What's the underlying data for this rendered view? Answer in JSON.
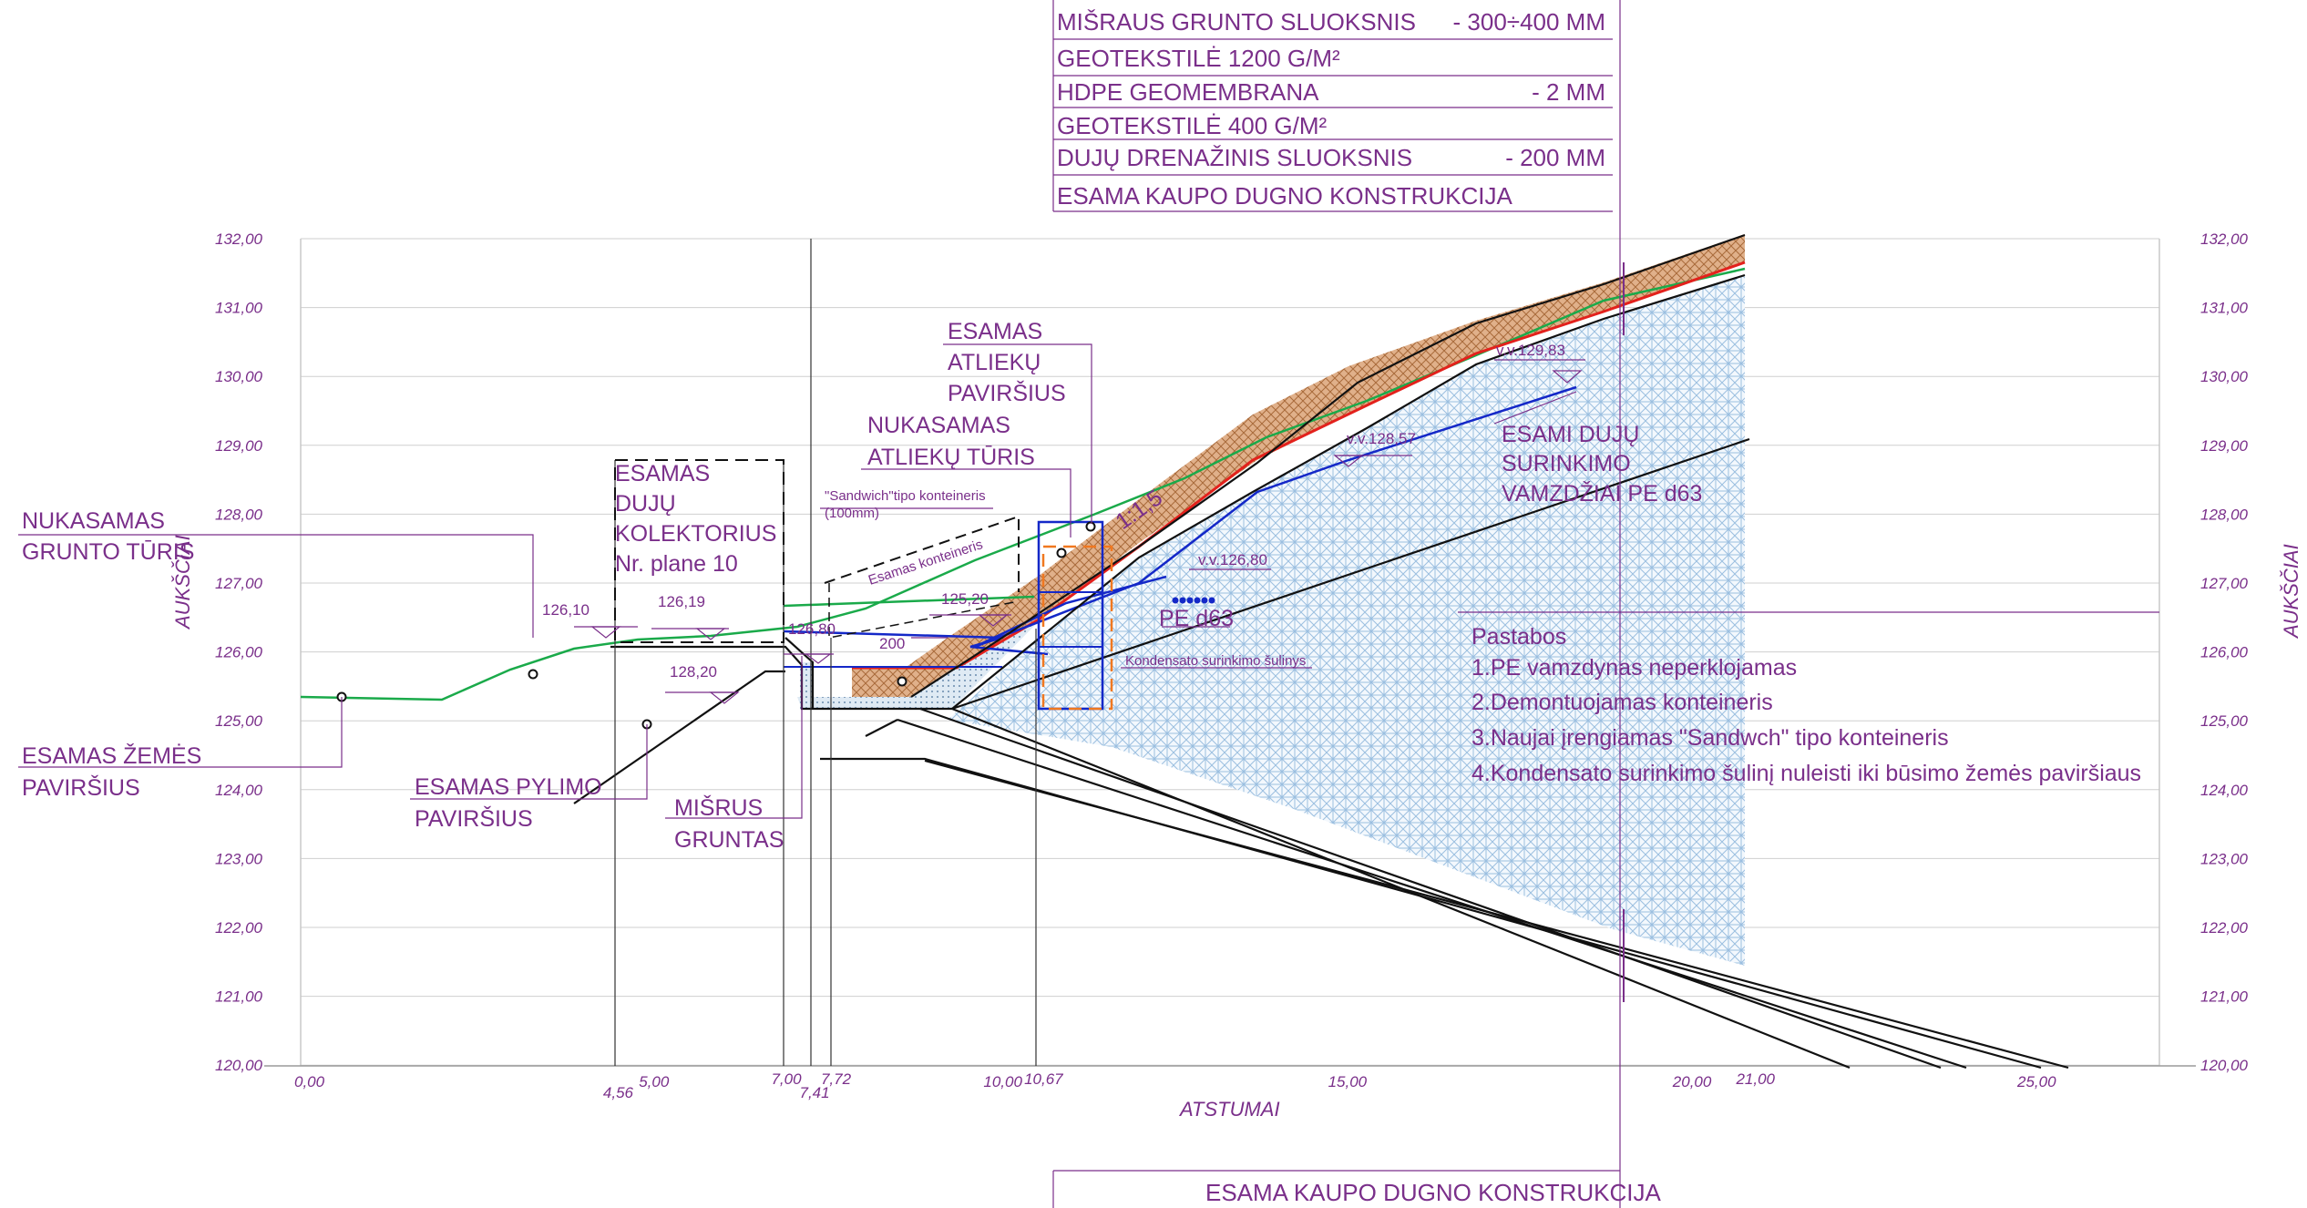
{
  "legend": {
    "rows": [
      {
        "name": "MIŠRAUS GRUNTO SLUOKSNIS",
        "value": "- 300÷400 MM"
      },
      {
        "name": "GEOTEKSTILĖ 1200 G/M²",
        "value": ""
      },
      {
        "name": "HDPE GEOMEMBRANA",
        "value": "- 2 MM"
      },
      {
        "name": "GEOTEKSTILĖ 400 G/M²",
        "value": ""
      },
      {
        "name": "DUJŲ DRENAŽINIS SLUOKSNIS",
        "value": "- 200 MM"
      },
      {
        "name": "ESAMA KAUPO DUGNO KONSTRUKCIJA",
        "value": ""
      }
    ],
    "bottom_label": "ESAMA KAUPO DUGNO KONSTRUKCIJA"
  },
  "axes": {
    "y_title": "AUKŠČIAI",
    "x_title": "ATSTUMAI",
    "y_ticks": [
      "132,00",
      "131,00",
      "130,00",
      "129,00",
      "128,00",
      "127,00",
      "126,00",
      "125,00",
      "124,00",
      "123,00",
      "122,00",
      "121,00",
      "120,00"
    ],
    "x_ticks": [
      "0,00",
      "5,00",
      "10,00",
      "15,00",
      "20,00",
      "25,00"
    ],
    "x_marks": [
      "4,56",
      "7,00",
      "7,41",
      "7,72",
      "10,67",
      "21,00"
    ]
  },
  "labels": {
    "esamas_atlieku_pavirsius": [
      "ESAMAS",
      "ATLIEKŲ",
      "PAVIRŠIUS"
    ],
    "nukasamas_atlieku_turis": [
      "NUKASAMAS",
      "ATLIEKŲ TŪRIS"
    ],
    "esamas_duju_kolektorius": [
      "ESAMAS",
      "DUJŲ",
      "KOLEKTORIUS",
      "Nr. plane 10"
    ],
    "nukasamas_grunto_turis": [
      "NUKASAMAS",
      "GRUNTO TŪRIS"
    ],
    "esamas_zemes_pavirsius": [
      "ESAMAS ŽEMĖS",
      "PAVIRŠIUS"
    ],
    "esamas_pylimo_pavirsius": [
      "ESAMAS PYLIMO",
      "PAVIRŠIUS"
    ],
    "misrus_gruntas": [
      "MIŠRUS",
      "GRUNTAS"
    ],
    "esami_duju_vamzdziai": [
      "ESAMI DUJŲ",
      "SURINKIMO",
      "VAMZDŽIAI PE d63"
    ],
    "sandwich_container": [
      "\"Sandwich\"tipo konteineris",
      "(100mm)"
    ],
    "esamas_konteineris": "Esamas konteineris",
    "kondensato_sulinys": "Kondensato surinkimo šulinys",
    "pe_d63": "PE d63",
    "slope": "1:1,5",
    "dim_200": "200"
  },
  "elevations": {
    "e1": "126,10",
    "e2": "126,19",
    "e3": "128,20",
    "e4": "126,80",
    "e5": "125,20",
    "vv1": "v.v.129,83",
    "vv2": "v.v.128,57",
    "vv3": "v.v.126,80"
  },
  "notes": {
    "title": "Pastabos",
    "items": [
      "1.PE vamzdynas neperklojamas",
      "2.Demontuojamas konteineris",
      "3.Naujai įrengiamas \"Sandwch\" tipo konteineris",
      "4.Kondensato surinkimo šulinį nuleisti iki būsimo žemės paviršiaus"
    ]
  },
  "colors": {
    "text": "#7a2f8a",
    "grid": "#c8c8c8",
    "green": "#1aaa4a",
    "red": "#e3211c",
    "blue": "#1428c8",
    "orange": "#f07820",
    "soil": "#d9a57a",
    "hatch": "#9bbfe0"
  }
}
